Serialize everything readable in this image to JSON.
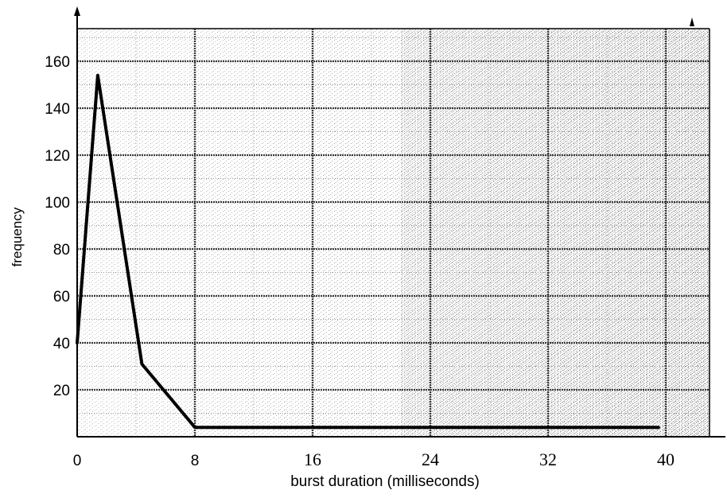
{
  "chart_data": {
    "type": "line",
    "title": "",
    "xlabel": "burst duration  (milliseconds)",
    "ylabel": "frequency",
    "xlim": [
      0,
      43
    ],
    "ylim": [
      0,
      175
    ],
    "x_ticks": [
      {
        "value": 0,
        "label": "0"
      },
      {
        "value": 8,
        "label": "8"
      },
      {
        "value": 16,
        "label": "16"
      },
      {
        "value": 24,
        "label": "24"
      },
      {
        "value": 32,
        "label": "32"
      },
      {
        "value": 40,
        "label": "40"
      }
    ],
    "y_ticks": [
      {
        "value": 20,
        "label": "20"
      },
      {
        "value": 40,
        "label": "40"
      },
      {
        "value": 60,
        "label": "60"
      },
      {
        "value": 80,
        "label": "80"
      },
      {
        "value": 100,
        "label": "100"
      },
      {
        "value": 120,
        "label": "120"
      },
      {
        "value": 140,
        "label": "140"
      },
      {
        "value": 160,
        "label": "160"
      }
    ],
    "grid": true,
    "series": [
      {
        "x": [
          0,
          1.4,
          4.4,
          8,
          39.5
        ],
        "y": [
          40,
          154,
          31,
          4,
          4
        ]
      }
    ],
    "colors": {
      "line": "#000000",
      "grid_major": "#3a3a3a",
      "grid_minor": "#9a9a9a",
      "axis": "#000000",
      "stipple": "#7a7a7a"
    }
  }
}
